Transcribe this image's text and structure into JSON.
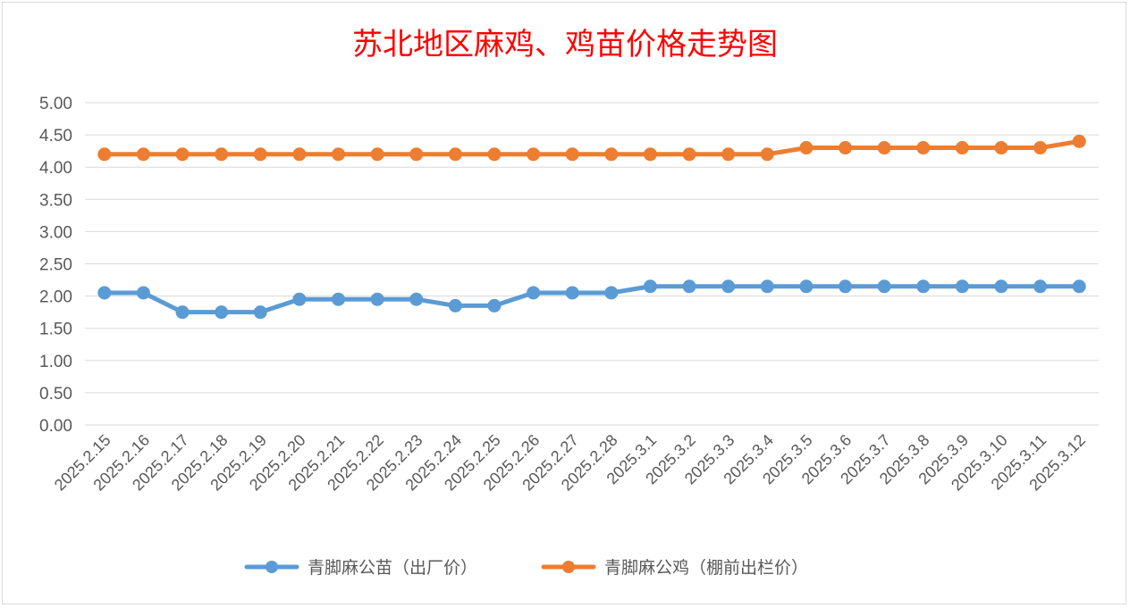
{
  "chart_data": {
    "type": "line",
    "title": "苏北地区麻鸡、鸡苗价格走势图",
    "xlabel": "",
    "ylabel": "",
    "ylim": [
      0,
      5
    ],
    "yticks": [
      "0.00",
      "0.50",
      "1.00",
      "1.50",
      "2.00",
      "2.50",
      "3.00",
      "3.50",
      "4.00",
      "4.50",
      "5.00"
    ],
    "grid": true,
    "legend_position": "bottom",
    "categories": [
      "2025.2.15",
      "2025.2.16",
      "2025.2.17",
      "2025.2.18",
      "2025.2.19",
      "2025.2.20",
      "2025.2.21",
      "2025.2.22",
      "2025.2.23",
      "2025.2.24",
      "2025.2.25",
      "2025.2.26",
      "2025.2.27",
      "2025.2.28",
      "2025.3.1",
      "2025.3.2",
      "2025.3.3",
      "2025.3.4",
      "2025.3.5",
      "2025.3.6",
      "2025.3.7",
      "2025.3.8",
      "2025.3.9",
      "2025.3.10",
      "2025.3.11",
      "2025.3.12"
    ],
    "series": [
      {
        "name": "青脚麻公苗（出厂价）",
        "color": "#5b9bd5",
        "values": [
          2.05,
          2.05,
          1.75,
          1.75,
          1.75,
          1.95,
          1.95,
          1.95,
          1.95,
          1.85,
          1.85,
          2.05,
          2.05,
          2.05,
          2.15,
          2.15,
          2.15,
          2.15,
          2.15,
          2.15,
          2.15,
          2.15,
          2.15,
          2.15,
          2.15,
          2.15
        ]
      },
      {
        "name": "青脚麻公鸡（棚前出栏价）",
        "color": "#ed7d31",
        "values": [
          4.2,
          4.2,
          4.2,
          4.2,
          4.2,
          4.2,
          4.2,
          4.2,
          4.2,
          4.2,
          4.2,
          4.2,
          4.2,
          4.2,
          4.2,
          4.2,
          4.2,
          4.2,
          4.3,
          4.3,
          4.3,
          4.3,
          4.3,
          4.3,
          4.3,
          4.4
        ]
      }
    ]
  }
}
